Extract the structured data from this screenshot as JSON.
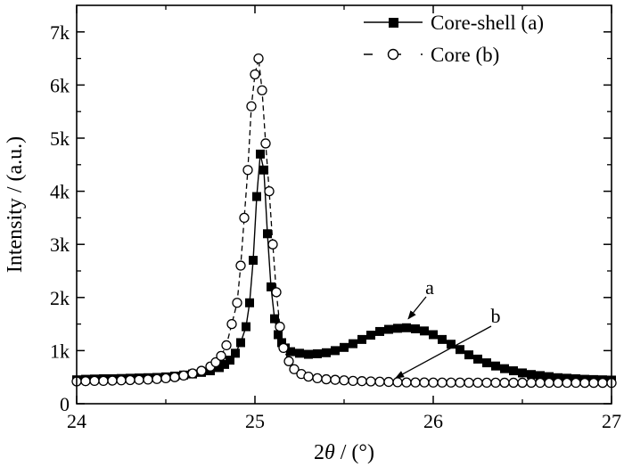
{
  "chart_data": {
    "type": "scatter",
    "title": "",
    "xlabel": "2θ / (°)",
    "ylabel": "Intensity / (a.u.)",
    "xlim": [
      24,
      27
    ],
    "ylim": [
      0,
      7500
    ],
    "x_ticks": [
      24,
      25,
      26,
      27
    ],
    "y_ticks": [
      0,
      1000,
      2000,
      3000,
      4000,
      5000,
      6000,
      7000
    ],
    "x_tick_labels": [
      "24",
      "25",
      "26",
      "27"
    ],
    "y_tick_labels": [
      "0",
      "1k",
      "2k",
      "3k",
      "4k",
      "5k",
      "6k",
      "7k"
    ],
    "grid": false,
    "legend_position": "top-right",
    "series": [
      {
        "name": "Core-shell (a)",
        "marker": "filled-square",
        "line": "solid",
        "color": "#000000",
        "x": [
          24.0,
          24.05,
          24.1,
          24.15,
          24.2,
          24.25,
          24.3,
          24.35,
          24.4,
          24.45,
          24.5,
          24.55,
          24.6,
          24.65,
          24.7,
          24.75,
          24.8,
          24.83,
          24.86,
          24.89,
          24.92,
          24.95,
          24.97,
          24.99,
          25.01,
          25.03,
          25.05,
          25.07,
          25.09,
          25.11,
          25.13,
          25.15,
          25.17,
          25.2,
          25.25,
          25.3,
          25.35,
          25.4,
          25.45,
          25.5,
          25.55,
          25.6,
          25.65,
          25.7,
          25.75,
          25.8,
          25.85,
          25.9,
          25.95,
          26.0,
          26.05,
          26.1,
          26.15,
          26.2,
          26.25,
          26.3,
          26.35,
          26.4,
          26.45,
          26.5,
          26.55,
          26.6,
          26.65,
          26.7,
          26.75,
          26.8,
          26.85,
          26.9,
          26.95,
          27.0
        ],
        "y": [
          450,
          460,
          465,
          470,
          470,
          475,
          480,
          485,
          490,
          495,
          505,
          520,
          540,
          560,
          590,
          620,
          680,
          740,
          820,
          950,
          1150,
          1450,
          1900,
          2700,
          3900,
          4700,
          4400,
          3200,
          2200,
          1600,
          1300,
          1150,
          1050,
          980,
          950,
          930,
          940,
          960,
          1000,
          1060,
          1130,
          1210,
          1290,
          1360,
          1400,
          1420,
          1430,
          1410,
          1370,
          1300,
          1210,
          1120,
          1020,
          920,
          840,
          770,
          710,
          660,
          620,
          580,
          550,
          530,
          510,
          490,
          480,
          470,
          460,
          455,
          450,
          445
        ]
      },
      {
        "name": "Core (b)",
        "marker": "open-circle",
        "line": "dashed",
        "color": "#000000",
        "x": [
          24.0,
          24.05,
          24.1,
          24.15,
          24.2,
          24.25,
          24.3,
          24.35,
          24.4,
          24.45,
          24.5,
          24.55,
          24.6,
          24.65,
          24.7,
          24.75,
          24.78,
          24.81,
          24.84,
          24.87,
          24.9,
          24.92,
          24.94,
          24.96,
          24.98,
          25.0,
          25.02,
          25.04,
          25.06,
          25.08,
          25.1,
          25.12,
          25.14,
          25.16,
          25.19,
          25.22,
          25.26,
          25.3,
          25.35,
          25.4,
          25.45,
          25.5,
          25.55,
          25.6,
          25.65,
          25.7,
          25.75,
          25.8,
          25.85,
          25.9,
          25.95,
          26.0,
          26.05,
          26.1,
          26.15,
          26.2,
          26.25,
          26.3,
          26.35,
          26.4,
          26.45,
          26.5,
          26.55,
          26.6,
          26.65,
          26.7,
          26.75,
          26.8,
          26.85,
          26.9,
          26.95,
          27.0
        ],
        "y": [
          420,
          425,
          430,
          430,
          435,
          440,
          445,
          450,
          455,
          465,
          480,
          500,
          530,
          570,
          620,
          700,
          780,
          900,
          1100,
          1500,
          1900,
          2600,
          3500,
          4400,
          5600,
          6200,
          6500,
          5900,
          4900,
          4000,
          3000,
          2100,
          1450,
          1050,
          800,
          650,
          560,
          510,
          480,
          460,
          450,
          440,
          430,
          425,
          420,
          415,
          410,
          405,
          400,
          400,
          400,
          398,
          398,
          398,
          398,
          396,
          396,
          396,
          396,
          395,
          395,
          395,
          395,
          394,
          394,
          394,
          394,
          394,
          393,
          393,
          393,
          392
        ]
      }
    ],
    "annotations": [
      {
        "text": "a",
        "x": 25.82,
        "y": 1430
      },
      {
        "text": "b",
        "x": 25.75,
        "y": 420
      }
    ]
  }
}
